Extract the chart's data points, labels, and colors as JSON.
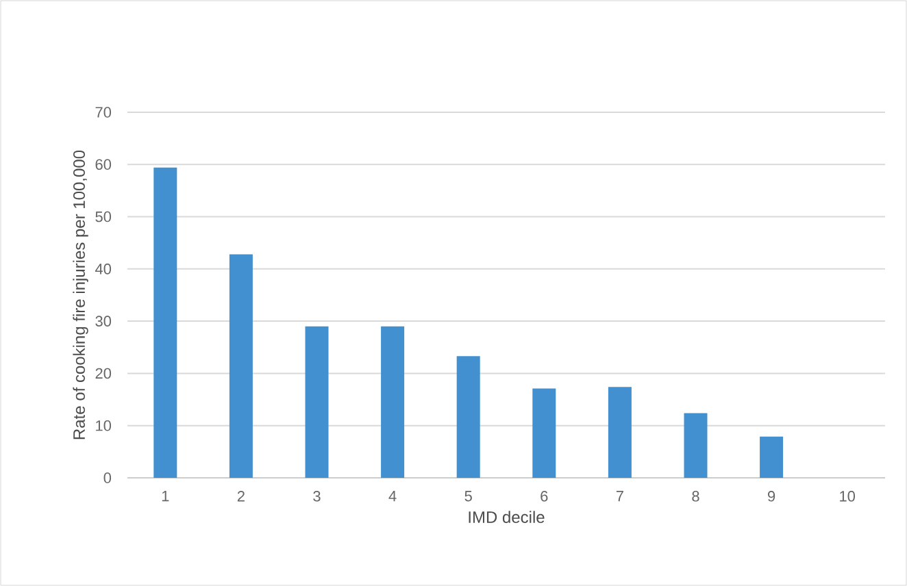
{
  "chart_data": {
    "type": "bar",
    "xlabel": "IMD decile",
    "ylabel": "Rate of cooking fire injuries per 100,000",
    "categories": [
      "1",
      "2",
      "3",
      "4",
      "5",
      "6",
      "7",
      "8",
      "9",
      "10"
    ],
    "values": [
      59.4,
      42.8,
      29.0,
      29.0,
      23.3,
      17.1,
      17.4,
      12.4,
      7.9,
      0
    ],
    "color": "#4290d0",
    "ylim": [
      0,
      70
    ],
    "yticks": [
      0,
      10,
      20,
      30,
      40,
      50,
      60,
      70
    ],
    "grid": "y"
  }
}
